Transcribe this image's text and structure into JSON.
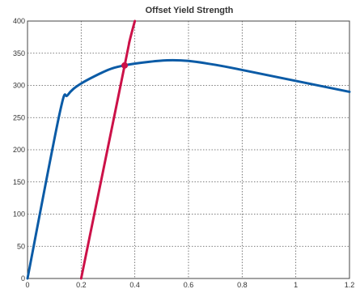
{
  "chart_data": {
    "type": "line",
    "title": "Offset Yield Strength",
    "xlabel": "",
    "ylabel": "",
    "xlim": [
      0,
      1.2
    ],
    "ylim": [
      0,
      400
    ],
    "xticks": [
      "0",
      "0.2",
      "0.4",
      "0.6",
      "0.8",
      "1",
      "1.2"
    ],
    "yticks": [
      "0",
      "50",
      "100",
      "150",
      "200",
      "250",
      "300",
      "350",
      "400"
    ],
    "grid": true,
    "legend": "none",
    "series": [
      {
        "color": "#0b5ba6",
        "x": [
          0,
          0.12,
          0.15,
          0.2,
          0.3,
          0.36,
          0.44,
          0.52,
          0.6,
          0.7,
          0.8,
          1.0,
          1.2
        ],
        "y": [
          0,
          257,
          285,
          303,
          324,
          331,
          336,
          339,
          338,
          332,
          324,
          307,
          290
        ]
      },
      {
        "color": "#cc1148",
        "x": [
          0.2,
          0.362,
          0.38,
          0.4
        ],
        "y": [
          0,
          331,
          368,
          400
        ]
      }
    ],
    "markers": [
      {
        "x": 0.362,
        "y": 331,
        "color": "#cc1148"
      }
    ]
  }
}
